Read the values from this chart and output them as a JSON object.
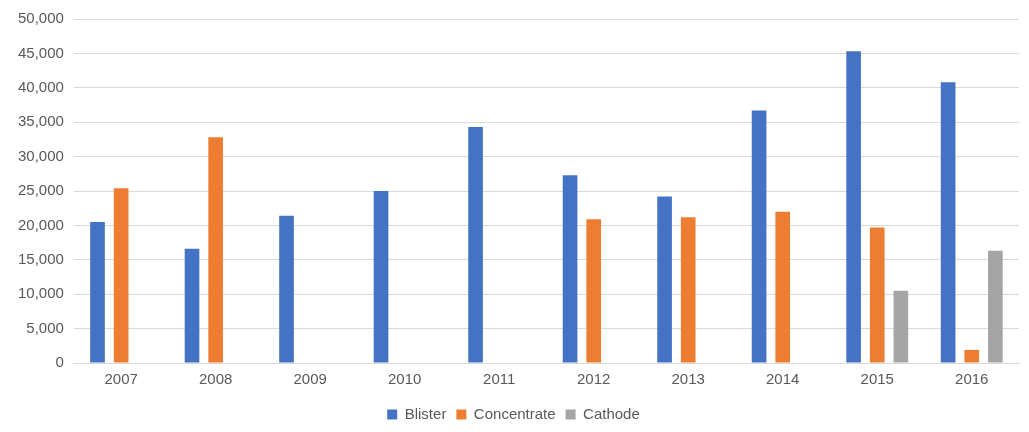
{
  "chart_data": {
    "type": "bar",
    "categories": [
      "2007",
      "2008",
      "2009",
      "2010",
      "2011",
      "2012",
      "2013",
      "2014",
      "2015",
      "2016"
    ],
    "series": [
      {
        "name": "Blister",
        "color": "#4472c4",
        "values": [
          20500,
          16600,
          21400,
          25000,
          34300,
          27300,
          24200,
          36700,
          45300,
          40800
        ]
      },
      {
        "name": "Concentrate",
        "color": "#ed7d31",
        "values": [
          25400,
          32800,
          null,
          null,
          null,
          20900,
          21200,
          22000,
          19700,
          1900
        ]
      },
      {
        "name": "Cathode",
        "color": "#a5a5a5",
        "values": [
          null,
          null,
          null,
          null,
          null,
          null,
          null,
          null,
          10500,
          16300
        ]
      }
    ],
    "ylim": [
      0,
      50000
    ],
    "yticks": [
      {
        "value": 0,
        "label": "0"
      },
      {
        "value": 5000,
        "label": "5,000"
      },
      {
        "value": 10000,
        "label": "10,000"
      },
      {
        "value": 15000,
        "label": "15,000"
      },
      {
        "value": 20000,
        "label": "20,000"
      },
      {
        "value": 25000,
        "label": "25,000"
      },
      {
        "value": 30000,
        "label": "30,000"
      },
      {
        "value": 35000,
        "label": "35,000"
      },
      {
        "value": 40000,
        "label": "40,000"
      },
      {
        "value": 45000,
        "label": "45,000"
      },
      {
        "value": 50000,
        "label": "50,000"
      }
    ],
    "grid": "y",
    "legend": "bottom"
  }
}
